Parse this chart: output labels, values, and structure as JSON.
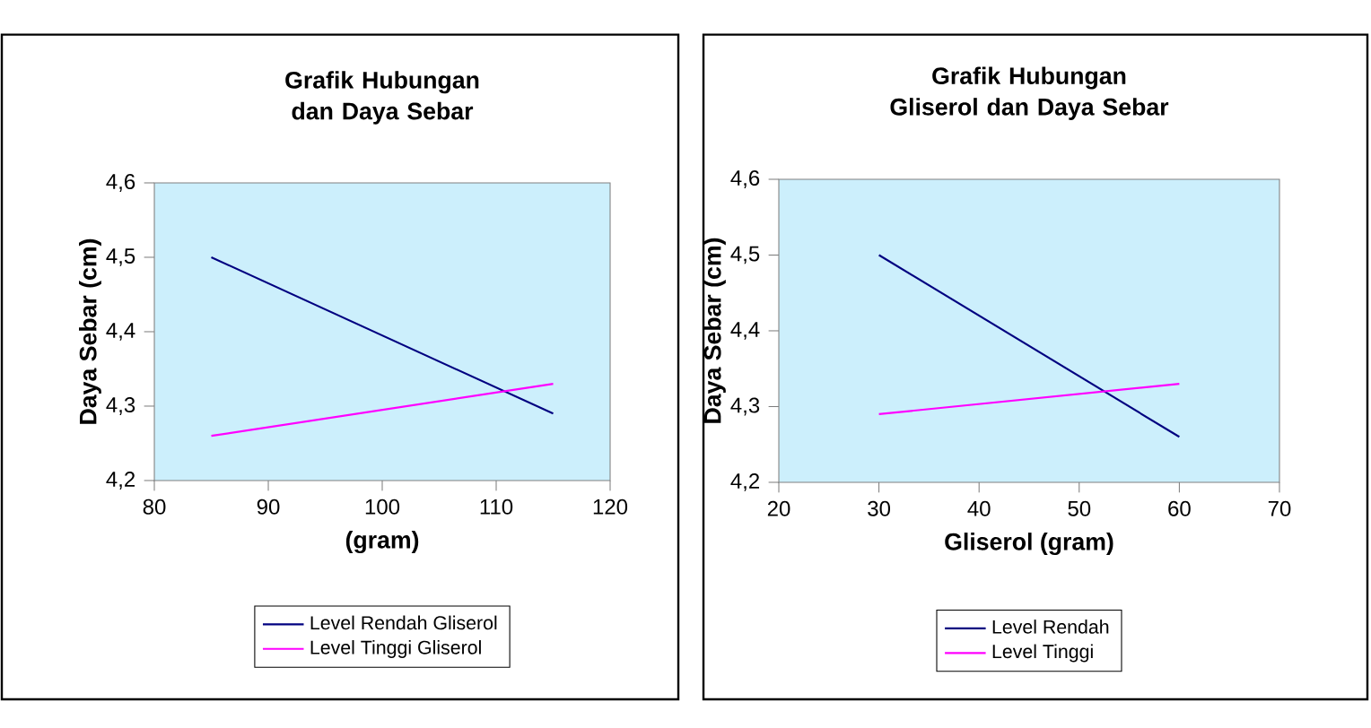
{
  "chart_data": [
    {
      "type": "line",
      "title": "Grafik Hubungan dan Daya Sebar",
      "xlabel": "(gram)",
      "ylabel": "Daya Sebar (cm)",
      "x": [
        85,
        115
      ],
      "series": [
        {
          "name": "Level Rendah Gliserol",
          "color": "#000080",
          "values": [
            4.5,
            4.29
          ]
        },
        {
          "name": "Level Tinggi Gliserol",
          "color": "#ff00ff",
          "values": [
            4.26,
            4.33
          ]
        }
      ],
      "xlim": [
        80,
        120
      ],
      "xticks": [
        80,
        90,
        100,
        110,
        120
      ],
      "ylim": [
        4.2,
        4.6
      ],
      "yticks": [
        {
          "value": 4.2,
          "label": "4,2"
        },
        {
          "value": 4.3,
          "label": "4,3"
        },
        {
          "value": 4.4,
          "label": "4,4"
        },
        {
          "value": 4.5,
          "label": "4,5"
        },
        {
          "value": 4.6,
          "label": "4,6"
        }
      ],
      "legend": "bottom",
      "marker": "none"
    },
    {
      "type": "line",
      "title": "Grafik Hubungan Gliserol dan Daya Sebar",
      "xlabel": "Gliserol (gram)",
      "ylabel": "Daya Sebar (cm)",
      "x": [
        30,
        60
      ],
      "series": [
        {
          "name": "Level Rendah",
          "color": "#000080",
          "values": [
            4.5,
            4.26
          ]
        },
        {
          "name": "Level Tinggi",
          "color": "#ff00ff",
          "values": [
            4.29,
            4.33
          ]
        }
      ],
      "xlim": [
        20,
        70
      ],
      "xticks": [
        20,
        30,
        40,
        50,
        60,
        70
      ],
      "ylim": [
        4.2,
        4.6
      ],
      "yticks": [
        {
          "value": 4.2,
          "label": "4,2"
        },
        {
          "value": 4.3,
          "label": "4,3"
        },
        {
          "value": 4.4,
          "label": "4,4"
        },
        {
          "value": 4.5,
          "label": "4,5"
        },
        {
          "value": 4.6,
          "label": "4,6"
        }
      ],
      "legend": "bottom",
      "marker": "none"
    }
  ]
}
